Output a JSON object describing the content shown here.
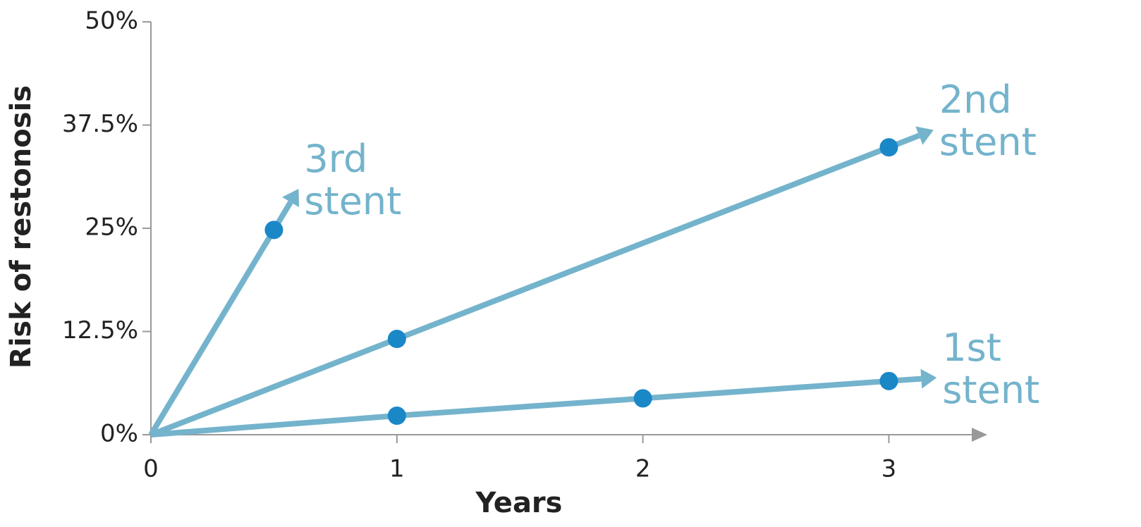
{
  "chart_data": {
    "type": "line",
    "x_label": "Years",
    "y_label": "Risk of restonosis",
    "xlim": [
      0,
      3.4
    ],
    "ylim": [
      0,
      50
    ],
    "xticks": [
      0,
      1,
      2,
      3
    ],
    "yticks": [
      {
        "value": 0,
        "label": "0%"
      },
      {
        "value": 12.5,
        "label": "12.5%"
      },
      {
        "value": 25,
        "label": "25%"
      },
      {
        "value": 37.5,
        "label": "37.5%"
      },
      {
        "value": 50,
        "label": "50%"
      }
    ],
    "line_color": "#74b3cc",
    "marker_color": "#1a87c7",
    "series": [
      {
        "name": "1st stent",
        "x": [
          0,
          1,
          2,
          3
        ],
        "values": [
          0,
          2.3,
          4.4,
          6.5
        ]
      },
      {
        "name": "2nd stent",
        "x": [
          0,
          1,
          3
        ],
        "values": [
          0,
          11.6,
          34.8
        ]
      },
      {
        "name": "3rd stent",
        "x": [
          0,
          0.5
        ],
        "values": [
          0,
          24.8
        ]
      }
    ]
  }
}
